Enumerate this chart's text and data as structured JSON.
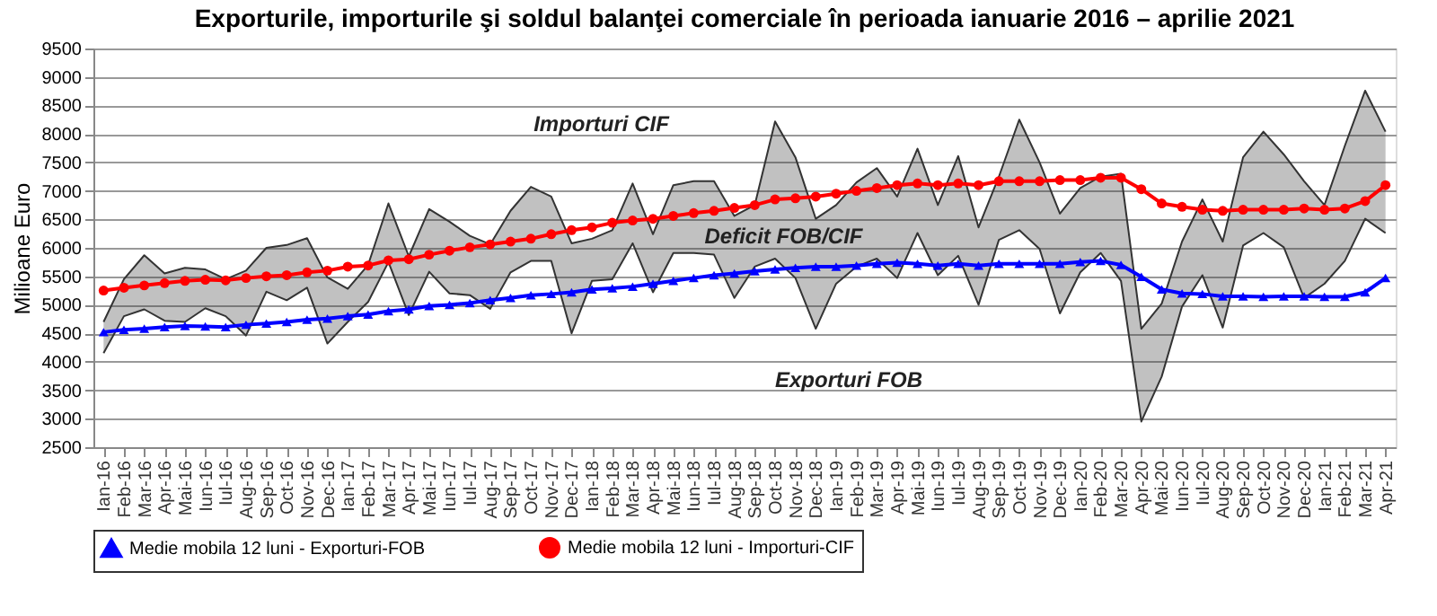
{
  "chart_data": {
    "type": "line",
    "title": "Exporturile, importurile şi soldul balanţei comerciale în perioada ianuarie 2016 – aprilie 2021",
    "ylabel": "Milioane Euro",
    "categories": [
      "Ian-16",
      "Feb-16",
      "Mar-16",
      "Apr-16",
      "Mai-16",
      "Iun-16",
      "Iul-16",
      "Aug-16",
      "Sep-16",
      "Oct-16",
      "Nov-16",
      "Dec-16",
      "Ian-17",
      "Feb-17",
      "Mar-17",
      "Apr-17",
      "Mai-17",
      "Iun-17",
      "Iul-17",
      "Aug-17",
      "Sep-17",
      "Oct-17",
      "Nov-17",
      "Dec-17",
      "Ian-18",
      "Feb-18",
      "Mar-18",
      "Apr-18",
      "Mai-18",
      "Iun-18",
      "Iul-18",
      "Aug-18",
      "Sep-18",
      "Oct-18",
      "Nov-18",
      "Dec-18",
      "Ian-19",
      "Feb-19",
      "Mar-19",
      "Apr-19",
      "Mai-19",
      "Iun-19",
      "Iul-19",
      "Aug-19",
      "Sep-19",
      "Oct-19",
      "Nov-19",
      "Dec-19",
      "Ian-20",
      "Feb-20",
      "Mar-20",
      "Apr-20",
      "Mai-20",
      "Iun-20",
      "Iul-20",
      "Aug-20",
      "Sep-20",
      "Oct-20",
      "Nov-20",
      "Dec-20",
      "Ian-21",
      "Feb-21",
      "Mar-21",
      "Apr-21"
    ],
    "series": [
      {
        "name": "Importuri CIF",
        "color": "#333333",
        "marker": "none",
        "upper": [
          4700,
          5450,
          5870,
          5550,
          5650,
          5620,
          5450,
          5600,
          6000,
          6050,
          6170,
          5480,
          5280,
          5700,
          6780,
          5850,
          6680,
          6460,
          6210,
          6060,
          6650,
          7070,
          6900,
          6080,
          6160,
          6310,
          7130,
          6240,
          7100,
          7170,
          7170,
          6560,
          6750,
          8220,
          7590,
          6510,
          6750,
          7150,
          7400,
          6900,
          7740,
          6750,
          7610,
          6360,
          7250,
          8250,
          7500,
          6600,
          7050,
          7250,
          7300,
          4580,
          5020,
          6110,
          6850,
          6110,
          7590,
          8040,
          7640,
          7170,
          6750,
          7790,
          8760,
          8040
        ],
        "lower": [
          4150,
          4800,
          4920,
          4720,
          4700,
          4940,
          4800,
          4460,
          5230,
          5080,
          5300,
          4320,
          4700,
          5050,
          5750,
          4820,
          5580,
          5200,
          5170,
          4930,
          5570,
          5770,
          5770,
          4500,
          5420,
          5450,
          6080,
          5220,
          5910,
          5910,
          5880,
          5120,
          5670,
          5810,
          5470,
          4580,
          5370,
          5670,
          5810,
          5470,
          6260,
          5520,
          5860,
          5000,
          6140,
          6310,
          5980,
          4850,
          5570,
          5910,
          5420,
          2950,
          3740,
          4970,
          5520,
          4600,
          6040,
          6260,
          6010,
          5120,
          5370,
          5770,
          6510,
          6260
        ],
        "values": [
          4700,
          5450,
          5870,
          5550,
          5650,
          5620,
          5450,
          5600,
          6000,
          6050,
          6170,
          5480,
          5280,
          5700,
          6780,
          5850,
          6680,
          6460,
          6210,
          6060,
          6650,
          7070,
          6900,
          6080,
          6160,
          6310,
          7130,
          6240,
          7100,
          7170,
          7170,
          6560,
          6750,
          8220,
          7590,
          6510,
          6750,
          7150,
          7400,
          6900,
          7740,
          6750,
          7610,
          6360,
          7250,
          8250,
          7500,
          6600,
          7050,
          7250,
          7300,
          4580,
          5020,
          6110,
          6850,
          6110,
          7590,
          8040,
          7640,
          7170,
          6750,
          7790,
          8760,
          8040
        ]
      },
      {
        "name": "Exporturi FOB",
        "color": "#333333",
        "marker": "none",
        "values": [
          4150,
          4800,
          4920,
          4720,
          4700,
          4940,
          4800,
          4460,
          5230,
          5080,
          5300,
          4320,
          4700,
          5050,
          5750,
          4820,
          5580,
          5200,
          5170,
          4930,
          5570,
          5770,
          5770,
          4500,
          5420,
          5450,
          6080,
          5220,
          5910,
          5910,
          5880,
          5120,
          5670,
          5810,
          5470,
          4580,
          5370,
          5670,
          5810,
          5470,
          6260,
          5520,
          5860,
          5000,
          6140,
          6310,
          5980,
          4850,
          5570,
          5910,
          5420,
          2950,
          3740,
          4970,
          5520,
          4600,
          6040,
          6260,
          6010,
          5120,
          5370,
          5770,
          6510,
          6260
        ]
      },
      {
        "name": "Medie mobila 12 luni - Exporturi-FOB",
        "color": "#0000ff",
        "marker": "triangle",
        "values": [
          4520,
          4560,
          4580,
          4610,
          4630,
          4620,
          4610,
          4650,
          4670,
          4700,
          4740,
          4760,
          4800,
          4830,
          4890,
          4920,
          4980,
          5000,
          5030,
          5080,
          5120,
          5170,
          5190,
          5220,
          5270,
          5290,
          5320,
          5370,
          5420,
          5470,
          5520,
          5550,
          5590,
          5620,
          5650,
          5670,
          5670,
          5690,
          5720,
          5740,
          5720,
          5690,
          5720,
          5690,
          5720,
          5720,
          5720,
          5720,
          5750,
          5770,
          5700,
          5490,
          5270,
          5200,
          5190,
          5150,
          5150,
          5140,
          5150,
          5150,
          5140,
          5140,
          5220,
          5470
        ]
      },
      {
        "name": "Medie mobila 12 luni - Importuri-CIF",
        "color": "#ff0000",
        "marker": "circle",
        "values": [
          5250,
          5300,
          5340,
          5380,
          5420,
          5440,
          5430,
          5470,
          5500,
          5520,
          5570,
          5600,
          5670,
          5690,
          5780,
          5800,
          5880,
          5950,
          6010,
          6060,
          6110,
          6160,
          6240,
          6310,
          6360,
          6440,
          6480,
          6510,
          6560,
          6610,
          6650,
          6700,
          6750,
          6850,
          6870,
          6900,
          6950,
          7000,
          7050,
          7100,
          7130,
          7100,
          7130,
          7100,
          7170,
          7170,
          7170,
          7190,
          7190,
          7230,
          7230,
          7030,
          6780,
          6720,
          6670,
          6650,
          6670,
          6670,
          6670,
          6690,
          6670,
          6690,
          6820,
          7100
        ]
      }
    ],
    "annotations": [
      "Deficit FOB/CIF"
    ],
    "ylim": [
      2500,
      9500
    ],
    "yticks": [
      2500,
      3000,
      3500,
      4000,
      4500,
      5000,
      5500,
      6000,
      6500,
      7000,
      7500,
      8000,
      8500,
      9000,
      9500
    ],
    "grid": "y",
    "legend": "bottom"
  }
}
